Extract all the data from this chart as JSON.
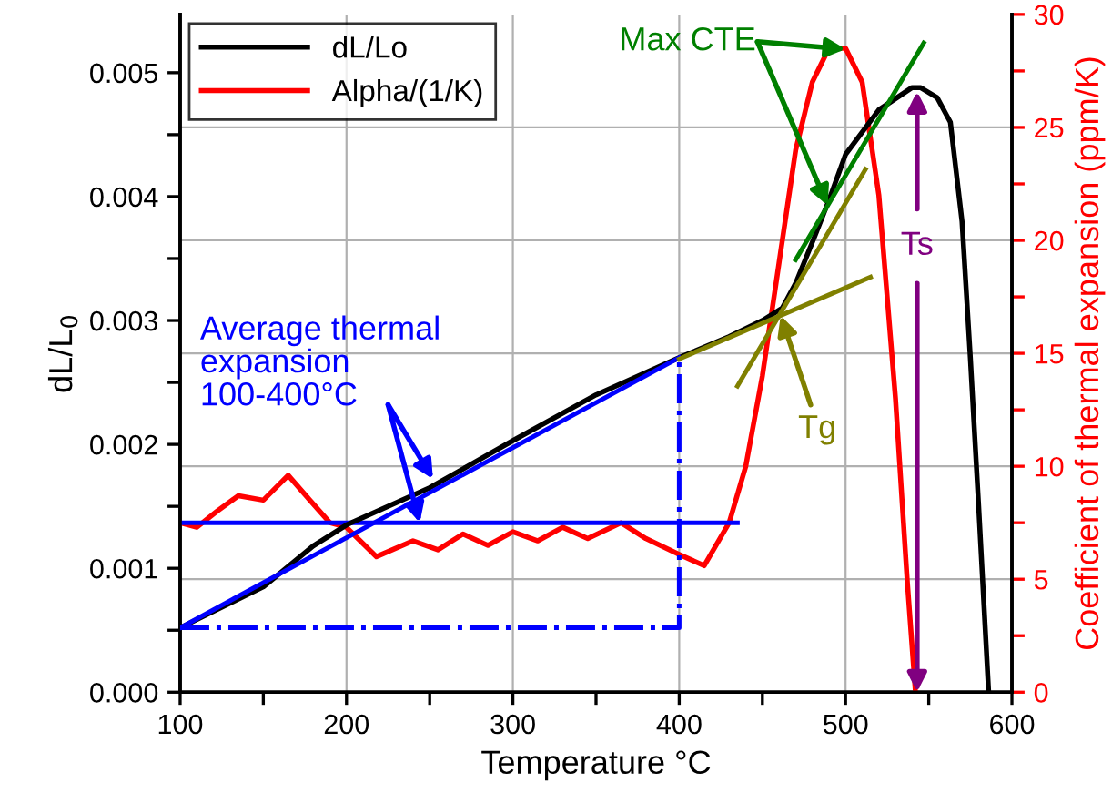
{
  "chart_data": {
    "type": "line",
    "xlabel": "Temperature °C",
    "ylabel": "dL/L$_{0}$",
    "y2label": "Coefficient of thermal expansion (ppm/K)",
    "xlim": [
      100,
      600
    ],
    "xticks": [
      100,
      {
        "value": 150,
        "label": null
      },
      200,
      {
        "value": 250,
        "label": null
      },
      300,
      {
        "value": 350,
        "label": null
      },
      400,
      {
        "value": 450,
        "label": null
      },
      500,
      {
        "value": 550,
        "label": null
      },
      600
    ],
    "ylim": [
      0,
      0.00547
    ],
    "yticks": [
      {
        "value": 0,
        "label": "0.000"
      },
      {
        "value": 0.0005,
        "label": null
      },
      {
        "value": 0.001,
        "label": "0.001"
      },
      {
        "value": 0.0015,
        "label": null
      },
      {
        "value": 0.002,
        "label": "0.002"
      },
      {
        "value": 0.0025,
        "label": null
      },
      {
        "value": 0.003,
        "label": "0.003"
      },
      {
        "value": 0.0035,
        "label": null
      },
      {
        "value": 0.004,
        "label": "0.004"
      },
      {
        "value": 0.0045,
        "label": null
      },
      {
        "value": 0.005,
        "label": "0.005"
      }
    ],
    "y2lim": [
      0,
      30
    ],
    "y2ticks": [
      0,
      {
        "value": 2.5,
        "label": null
      },
      5,
      {
        "value": 7.5,
        "label": null
      },
      10,
      {
        "value": 12.5,
        "label": null
      },
      15,
      {
        "value": 17.5,
        "label": null
      },
      20,
      {
        "value": 22.5,
        "label": null
      },
      25,
      {
        "value": 27.5,
        "label": null
      },
      30
    ],
    "grid": true,
    "legend": "top left",
    "line_style": "solid",
    "series": [
      {
        "name": "dL/Lo",
        "color": "#000000",
        "x": [
          100,
          150,
          180,
          200,
          250,
          300,
          350,
          400,
          430,
          450,
          462,
          470,
          480,
          490,
          500,
          520,
          540,
          545,
          555,
          563,
          570,
          575,
          580,
          586
        ],
        "values": [
          0.00052,
          0.00085,
          0.00118,
          0.00135,
          0.00165,
          0.00203,
          0.0024,
          0.0027,
          0.00287,
          0.003,
          0.0031,
          0.0033,
          0.00363,
          0.00397,
          0.00434,
          0.0047,
          0.00488,
          0.00488,
          0.0048,
          0.0046,
          0.0038,
          0.0027,
          0.0015,
          0.0
        ]
      },
      {
        "name": "Alpha/(1/K)",
        "color": "#ff0000",
        "axis": "y2",
        "x": [
          100,
          110,
          122,
          135,
          150,
          165,
          178,
          190,
          200,
          218,
          240,
          255,
          270,
          285,
          300,
          315,
          330,
          345,
          365,
          380,
          400,
          415,
          430,
          440,
          450,
          460,
          470,
          480,
          490,
          500,
          510,
          520,
          530,
          537,
          542
        ],
        "values": [
          7.5,
          7.3,
          8.0,
          8.7,
          8.5,
          9.6,
          8.5,
          7.5,
          7.3,
          6.0,
          6.7,
          6.3,
          7.0,
          6.5,
          7.1,
          6.7,
          7.3,
          6.8,
          7.5,
          6.8,
          6.1,
          5.6,
          7.5,
          10,
          14,
          19,
          24,
          27,
          28.5,
          28.5,
          27,
          22,
          13,
          5,
          0
        ]
      },
      {
        "color": "#0000ff",
        "x": [
          100,
          400
        ],
        "values": [
          0.00052,
          0.0027
        ]
      },
      {
        "color": "#0000ff",
        "axis": "y2",
        "x": [
          100,
          435
        ],
        "values": [
          7.5,
          7.5
        ]
      },
      {
        "color": "#0000ff",
        "line_style": "dashdot",
        "x": [
          100,
          400,
          400
        ],
        "values": [
          0.00052,
          0.00052,
          0.0027
        ]
      },
      {
        "color": "#808000",
        "x": [
          400,
          515
        ],
        "values": [
          0.00269,
          0.00335
        ]
      },
      {
        "color": "#808000",
        "x": [
          435,
          512
        ],
        "values": [
          0.00247,
          0.00422
        ]
      },
      {
        "color": "#008000",
        "x": [
          470,
          547
        ],
        "values": [
          0.00349,
          0.00524
        ]
      }
    ],
    "annotations": [
      {
        "text": "Average thermal\nexpansion\n100-400°C",
        "x": 252,
        "y": 0.00172
      },
      {
        "text": "Max CTE",
        "x": 500,
        "y": 0.00519
      },
      {
        "text": "Tg",
        "x": 461,
        "y": 0.00304
      },
      {
        "text": "Ts",
        "x": 543,
        "y": 0.00485
      }
    ]
  }
}
